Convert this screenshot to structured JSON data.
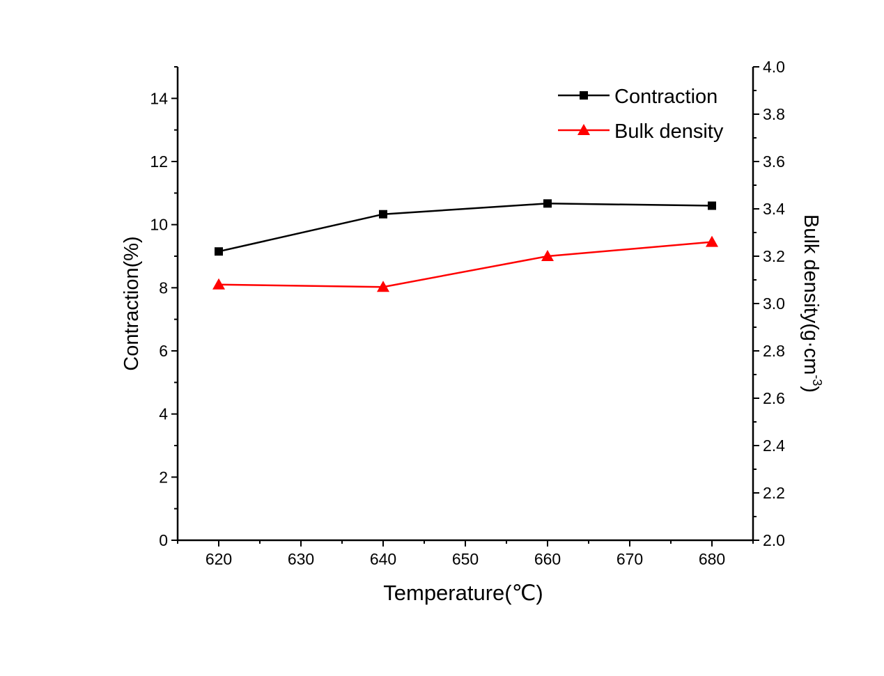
{
  "chart_data": {
    "type": "line",
    "title": "",
    "xlabel": "Temperature(℃)",
    "ylabel": "Contraction(%)",
    "y2label": "Bulk density(g·cm",
    "y2label_sup": "-3",
    "y2label_end": ")",
    "x": [
      620,
      640,
      660,
      680
    ],
    "xlim": [
      615,
      685
    ],
    "ylim": [
      0,
      15
    ],
    "y2lim": [
      2.0,
      4.0
    ],
    "xticks": [
      "620",
      "630",
      "640",
      "650",
      "660",
      "670",
      "680"
    ],
    "yticks": [
      "0",
      "2",
      "4",
      "6",
      "8",
      "10",
      "12",
      "14"
    ],
    "y2ticks": [
      "2.0",
      "2.2",
      "2.4",
      "2.6",
      "2.8",
      "3.0",
      "3.2",
      "3.4",
      "3.6",
      "3.8",
      "4.0"
    ],
    "legend_position": "top-right",
    "grid": false,
    "series": [
      {
        "name": "Contraction",
        "axis": "left",
        "marker": "square",
        "color": "#000000",
        "values": [
          9.15,
          10.33,
          10.67,
          10.6
        ]
      },
      {
        "name": "Bulk density",
        "axis": "right",
        "marker": "triangle",
        "color": "#ff0000",
        "values": [
          3.08,
          3.07,
          3.2,
          3.26
        ]
      }
    ]
  }
}
